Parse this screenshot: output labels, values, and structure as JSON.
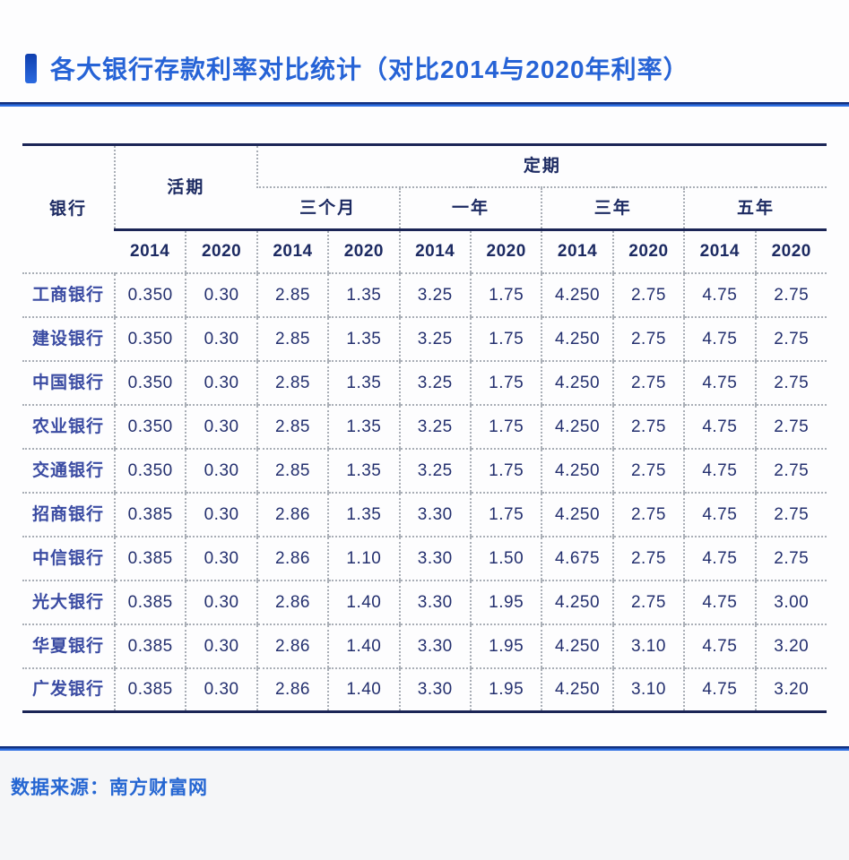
{
  "page": {
    "title": "各大银行存款利率对比统计（对比2014与2020年利率）",
    "source_label": "数据来源：南方财富网"
  },
  "colors": {
    "accent_blue": "#2663d6",
    "rule_blue": "#2f6fe2",
    "table_border_navy": "#1b2556",
    "header_text": "#1c2a62",
    "bank_text": "#3a4ba2",
    "value_text": "#232f6e",
    "dotted_grid": "#a9aeb6"
  },
  "chart_data": {
    "type": "table",
    "title": "各大银行存款利率对比统计（对比2014与2020年利率）",
    "source": "数据来源：南方财富网",
    "layout": {
      "grid": "dotted inner grid, solid navy top/bottom rules",
      "column_group_structure": "银行 | 活期(2014,2020) | 定期[三个月,一年,三年,五年]×(2014,2020)"
    },
    "header": {
      "bank": "银行",
      "demand": "活期",
      "fixed": "定期",
      "fixed_periods": [
        "三个月",
        "一年",
        "三年",
        "五年"
      ],
      "year_headers": [
        "2014",
        "2020",
        "2014",
        "2020",
        "2014",
        "2020",
        "2014",
        "2020",
        "2014",
        "2020"
      ]
    },
    "rows": [
      {
        "bank": "工商银行",
        "values": [
          "0.350",
          "0.30",
          "2.85",
          "1.35",
          "3.25",
          "1.75",
          "4.250",
          "2.75",
          "4.75",
          "2.75"
        ]
      },
      {
        "bank": "建设银行",
        "values": [
          "0.350",
          "0.30",
          "2.85",
          "1.35",
          "3.25",
          "1.75",
          "4.250",
          "2.75",
          "4.75",
          "2.75"
        ]
      },
      {
        "bank": "中国银行",
        "values": [
          "0.350",
          "0.30",
          "2.85",
          "1.35",
          "3.25",
          "1.75",
          "4.250",
          "2.75",
          "4.75",
          "2.75"
        ]
      },
      {
        "bank": "农业银行",
        "values": [
          "0.350",
          "0.30",
          "2.85",
          "1.35",
          "3.25",
          "1.75",
          "4.250",
          "2.75",
          "4.75",
          "2.75"
        ]
      },
      {
        "bank": "交通银行",
        "values": [
          "0.350",
          "0.30",
          "2.85",
          "1.35",
          "3.25",
          "1.75",
          "4.250",
          "2.75",
          "4.75",
          "2.75"
        ]
      },
      {
        "bank": "招商银行",
        "values": [
          "0.385",
          "0.30",
          "2.86",
          "1.35",
          "3.30",
          "1.75",
          "4.250",
          "2.75",
          "4.75",
          "2.75"
        ]
      },
      {
        "bank": "中信银行",
        "values": [
          "0.385",
          "0.30",
          "2.86",
          "1.10",
          "3.30",
          "1.50",
          "4.675",
          "2.75",
          "4.75",
          "2.75"
        ]
      },
      {
        "bank": "光大银行",
        "values": [
          "0.385",
          "0.30",
          "2.86",
          "1.40",
          "3.30",
          "1.95",
          "4.250",
          "2.75",
          "4.75",
          "3.00"
        ]
      },
      {
        "bank": "华夏银行",
        "values": [
          "0.385",
          "0.30",
          "2.86",
          "1.40",
          "3.30",
          "1.95",
          "4.250",
          "3.10",
          "4.75",
          "3.20"
        ]
      },
      {
        "bank": "广发银行",
        "values": [
          "0.385",
          "0.30",
          "2.86",
          "1.40",
          "3.30",
          "1.95",
          "4.250",
          "3.10",
          "4.75",
          "3.20"
        ]
      }
    ]
  }
}
